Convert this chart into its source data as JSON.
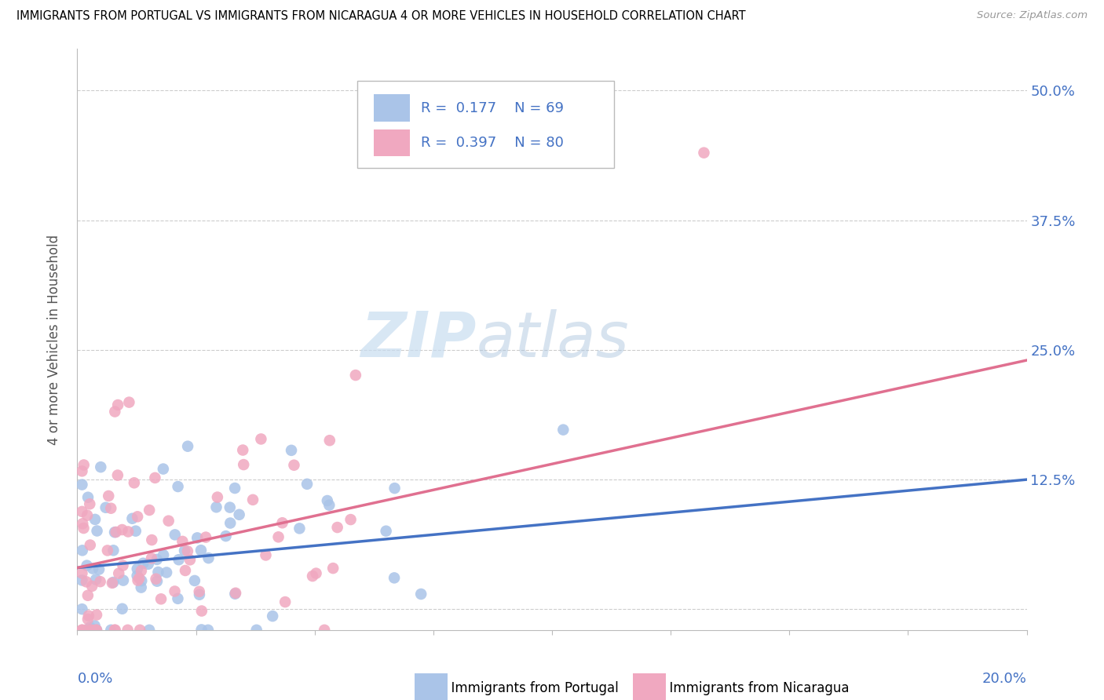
{
  "title": "IMMIGRANTS FROM PORTUGAL VS IMMIGRANTS FROM NICARAGUA 4 OR MORE VEHICLES IN HOUSEHOLD CORRELATION CHART",
  "source": "Source: ZipAtlas.com",
  "ylabel": "4 or more Vehicles in Household",
  "ytick_labels": [
    "",
    "12.5%",
    "25.0%",
    "37.5%",
    "50.0%"
  ],
  "ytick_values": [
    0.0,
    0.125,
    0.25,
    0.375,
    0.5
  ],
  "xlim": [
    0.0,
    0.2
  ],
  "ylim": [
    -0.02,
    0.54
  ],
  "legend_r_portugal": "R =  0.177",
  "legend_n_portugal": "N = 69",
  "legend_r_nicaragua": "R =  0.397",
  "legend_n_nicaragua": "N = 80",
  "color_portugal": "#aac4e8",
  "color_nicaragua": "#f0a8c0",
  "color_line_portugal": "#4472c4",
  "color_line_nicaragua": "#e07090",
  "color_text_blue": "#4472c4",
  "watermark_zip": "ZIP",
  "watermark_atlas": "atlas",
  "seed": 12345
}
